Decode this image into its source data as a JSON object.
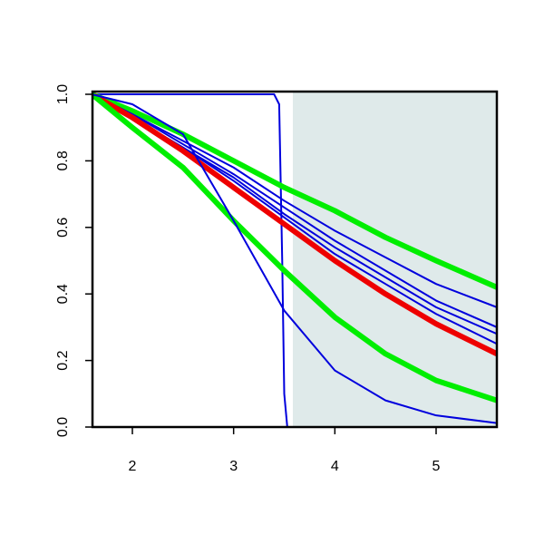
{
  "chart_data": {
    "type": "line",
    "xlim": [
      1.606,
      5.6
    ],
    "ylim": [
      0,
      1
    ],
    "xticks": [
      2,
      3,
      4,
      5
    ],
    "yticks": [
      {
        "value": 0,
        "label": "0.0"
      },
      0.2,
      0.4,
      0.6,
      0.8,
      {
        "value": 1,
        "label": "1.0"
      }
    ],
    "shaded_region": {
      "xlim": [
        3.585,
        5.6
      ],
      "color": "#dfeaea"
    },
    "series": [
      {
        "color": "#0000dd",
        "line_width": 2,
        "x": [
          1.6,
          3.4,
          3.45,
          3.48,
          3.5,
          3.53,
          5.6
        ],
        "values": [
          1,
          1,
          0.97,
          0.5,
          0.1,
          0,
          0
        ]
      },
      {
        "color": "#00ee00",
        "line_width": 6,
        "x": [
          1.6,
          2,
          2.5,
          3,
          3.5,
          4,
          4.5,
          5,
          5.6
        ],
        "values": [
          1,
          0.95,
          0.88,
          0.8,
          0.72,
          0.65,
          0.57,
          0.5,
          0.42
        ]
      },
      {
        "color": "#0000dd",
        "line_width": 2,
        "x": [
          1.6,
          2,
          2.5,
          3,
          3.5,
          4,
          4.5,
          5,
          5.6
        ],
        "values": [
          1,
          0.94,
          0.86,
          0.78,
          0.68,
          0.59,
          0.51,
          0.43,
          0.36
        ]
      },
      {
        "color": "#0000dd",
        "line_width": 2,
        "x": [
          1.6,
          2,
          2.5,
          3,
          3.5,
          4,
          4.5,
          5,
          5.6
        ],
        "values": [
          1,
          0.94,
          0.85,
          0.76,
          0.66,
          0.56,
          0.47,
          0.38,
          0.3
        ]
      },
      {
        "color": "#0000dd",
        "line_width": 2,
        "x": [
          1.6,
          2,
          2.5,
          3,
          3.5,
          4,
          4.5,
          5,
          5.6
        ],
        "values": [
          1,
          0.93,
          0.84,
          0.75,
          0.64,
          0.54,
          0.45,
          0.36,
          0.28
        ]
      },
      {
        "color": "#0000dd",
        "line_width": 2,
        "x": [
          1.6,
          2,
          2.5,
          3,
          3.5,
          4,
          4.5,
          5,
          5.6
        ],
        "values": [
          1,
          0.93,
          0.84,
          0.74,
          0.63,
          0.52,
          0.43,
          0.34,
          0.25
        ]
      },
      {
        "color": "#ee0000",
        "line_width": 6,
        "x": [
          1.6,
          2,
          2.5,
          3,
          3.5,
          4,
          4.5,
          5,
          5.6
        ],
        "values": [
          1,
          0.93,
          0.83,
          0.72,
          0.61,
          0.5,
          0.4,
          0.31,
          0.22
        ]
      },
      {
        "color": "#00ee00",
        "line_width": 6,
        "x": [
          1.6,
          2,
          2.5,
          3,
          3.5,
          4,
          4.5,
          5,
          5.6
        ],
        "values": [
          1,
          0.9,
          0.78,
          0.62,
          0.47,
          0.33,
          0.22,
          0.14,
          0.08
        ]
      },
      {
        "color": "#0000dd",
        "line_width": 2,
        "x": [
          1.6,
          2,
          2.5,
          3,
          3.5,
          4,
          4.5,
          5,
          5.6
        ],
        "values": [
          1,
          0.97,
          0.88,
          0.62,
          0.35,
          0.17,
          0.08,
          0.035,
          0.012
        ]
      }
    ]
  }
}
